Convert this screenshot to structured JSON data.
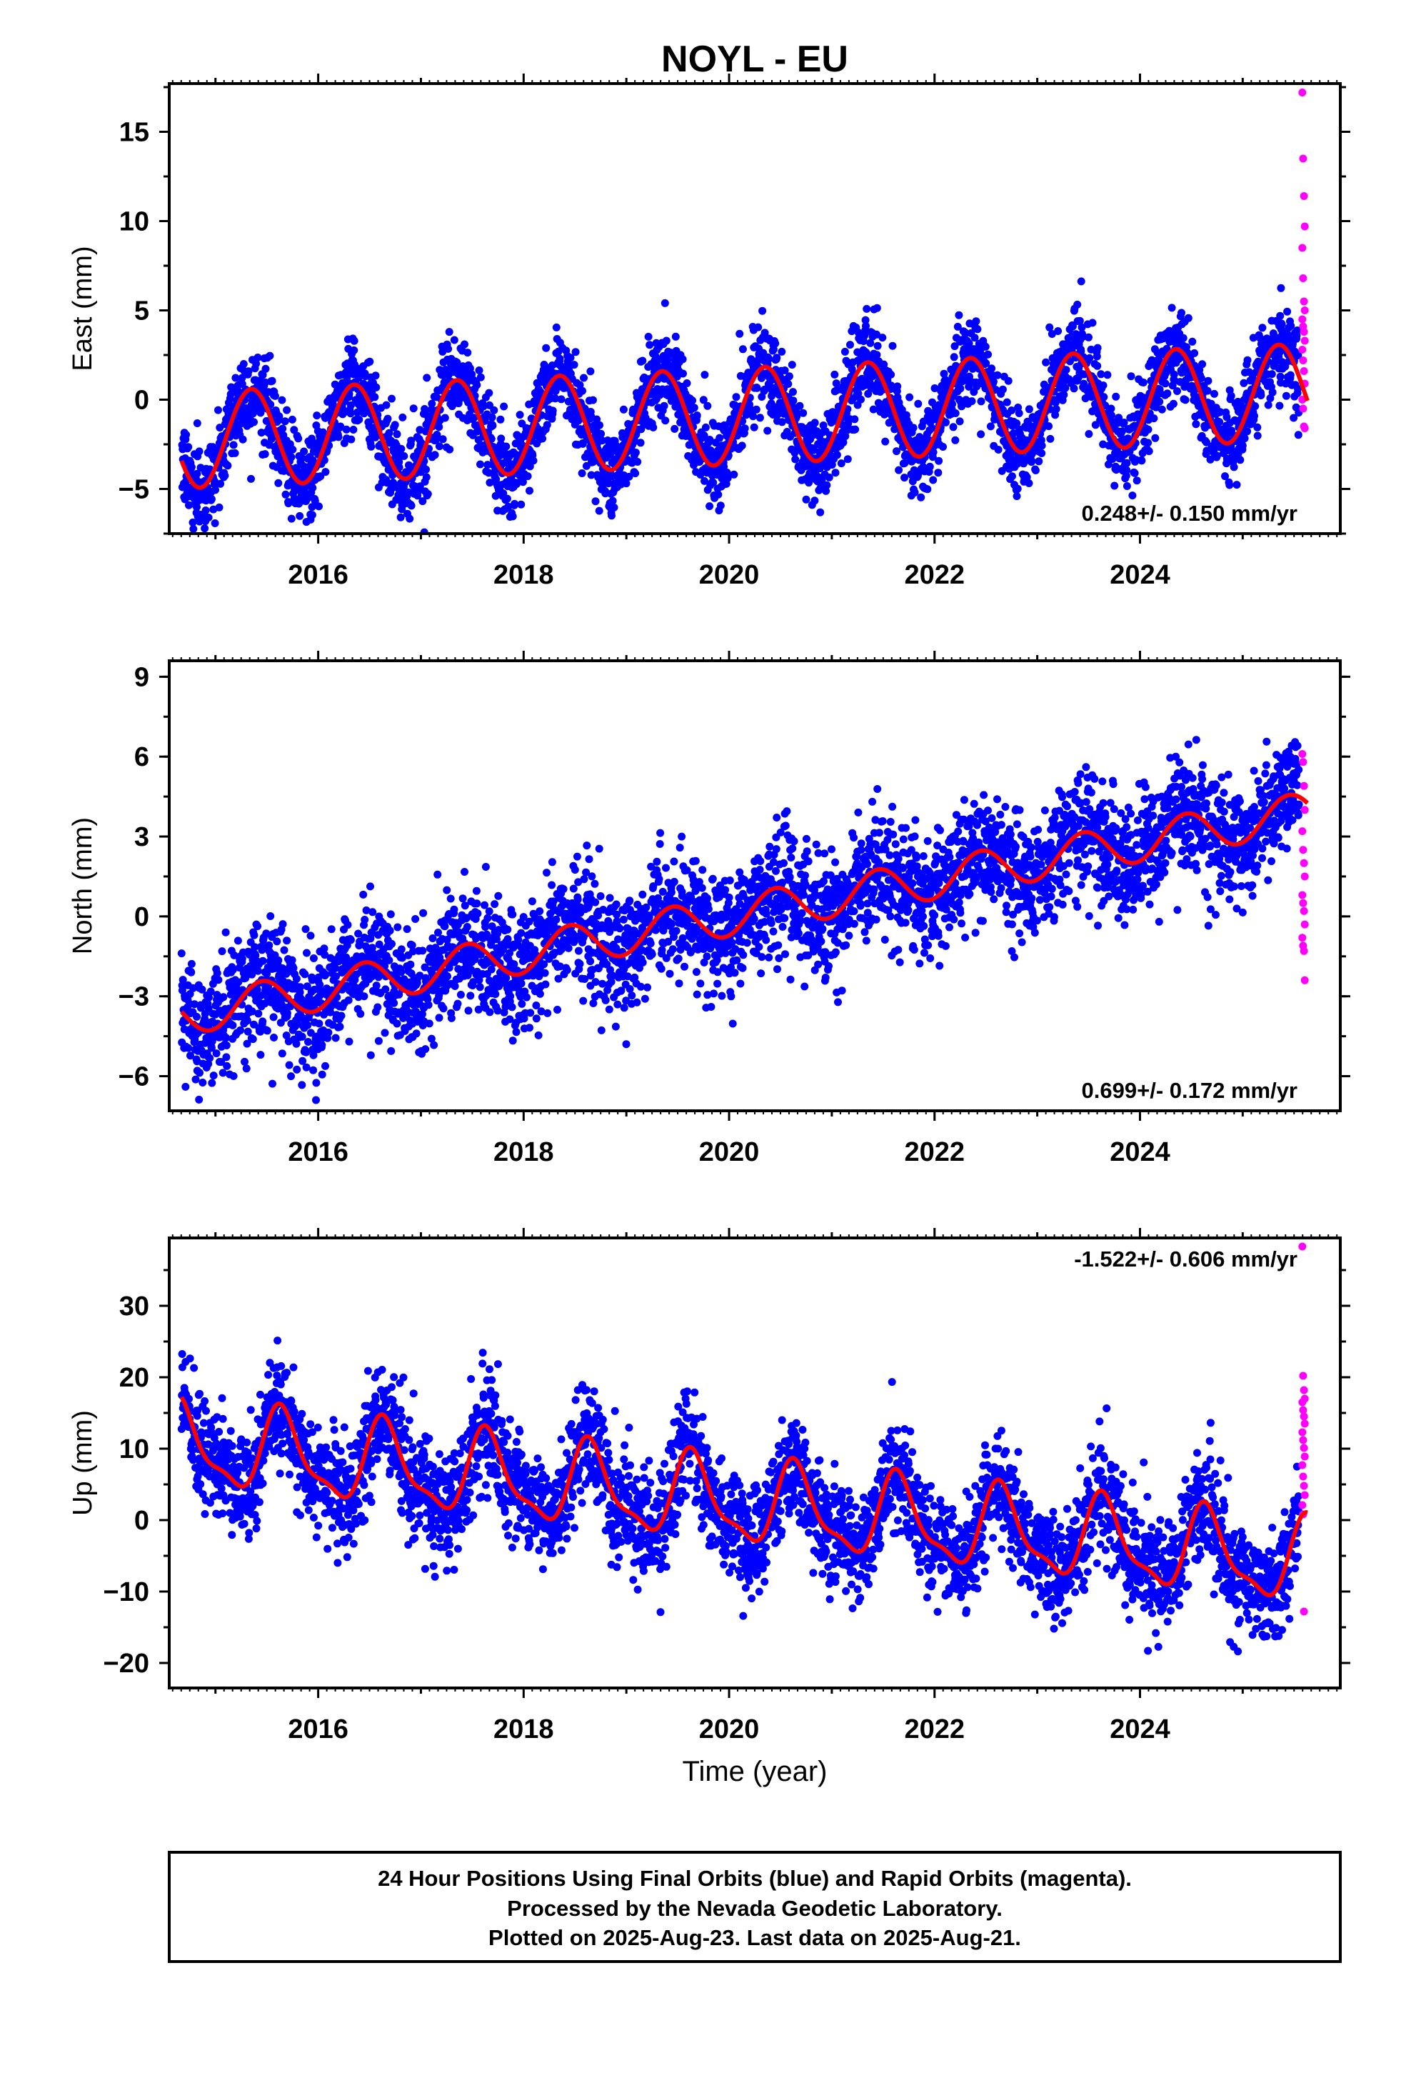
{
  "title": "NOYL - EU",
  "chart_data": [
    {
      "type": "scatter",
      "name": "east",
      "ylabel": "East (mm)",
      "ylim": [
        -7.5,
        17.7
      ],
      "xlim": [
        2014.55,
        2025.95
      ],
      "yticks": [
        -5,
        0,
        5,
        10,
        15
      ],
      "xticks": [
        2016,
        2018,
        2020,
        2022,
        2024
      ],
      "rate_label": "0.248+/- 0.150 mm/yr",
      "rate_position": "bottom-right",
      "model": {
        "offset": -0.9,
        "slope": 0.248,
        "t0": 2020.2,
        "annual_amplitude": 2.7,
        "annual_peak": 2020.35,
        "semiannual_amplitude": 0.0
      },
      "scatter_sigma": 1.2,
      "rapid_points": [
        17.2,
        13.5,
        11.4,
        9.7,
        8.5,
        6.8,
        5.5,
        5.0,
        4.5,
        4.1,
        3.8,
        3.3,
        2.8,
        2.2,
        1.6,
        0.9,
        0.0,
        -0.5,
        -1.5,
        -1.6
      ]
    },
    {
      "type": "scatter",
      "name": "north",
      "ylabel": "North (mm)",
      "ylim": [
        -7.3,
        9.6
      ],
      "xlim": [
        2014.55,
        2025.95
      ],
      "yticks": [
        -6,
        -3,
        0,
        3,
        6,
        9
      ],
      "xticks": [
        2016,
        2018,
        2020,
        2022,
        2024
      ],
      "rate_label": "0.699+/- 0.172 mm/yr",
      "rate_position": "bottom-right",
      "model": {
        "offset": 0.0,
        "slope": 0.699,
        "t0": 2020.0,
        "annual_amplitude": 0.75,
        "annual_peak": 2020.45,
        "semiannual_amplitude": 0.0
      },
      "scatter_sigma": 1.1,
      "rapid_points": [
        6.1,
        5.8,
        4.9,
        4.0,
        3.2,
        2.5,
        2.0,
        1.5,
        0.8,
        0.5,
        0.2,
        -0.3,
        -0.8,
        -1.1,
        -1.3,
        -2.4
      ]
    },
    {
      "type": "scatter",
      "name": "up",
      "ylabel": "Up (mm)",
      "xlabel": "Time (year)",
      "ylim": [
        -23.5,
        39.5
      ],
      "xlim": [
        2014.55,
        2025.95
      ],
      "yticks": [
        -20,
        -10,
        0,
        10,
        20,
        30
      ],
      "xticks": [
        2016,
        2018,
        2020,
        2022,
        2024
      ],
      "rate_label": "-1.522+/- 0.606 mm/yr",
      "rate_position": "top-right",
      "model": {
        "offset": 2.5,
        "slope": -1.522,
        "t0": 2020.0,
        "annual_amplitude": 5.5,
        "annual_peak": 2020.65,
        "semiannual_amplitude": 1.8,
        "semiannual_peak": 2020.6
      },
      "scatter_sigma": 3.8,
      "rapid_points": [
        38.3,
        20.2,
        18.2,
        17.0,
        16.5,
        15.4,
        14.5,
        13.5,
        12.3,
        11.2,
        10.1,
        8.9,
        7.7,
        6.1,
        4.8,
        3.5,
        2.1,
        0.8,
        -12.8
      ]
    }
  ],
  "time_range": {
    "start": 2014.67,
    "end_final": 2025.55,
    "end_rapid": 2025.63
  },
  "colors": {
    "final": "#0000ff",
    "rapid": "#ff00ff",
    "model": "#ff0000",
    "frame": "#000000"
  },
  "footer": {
    "line1": "24 Hour Positions Using Final Orbits (blue) and Rapid Orbits (magenta).",
    "line2": "Processed by the Nevada Geodetic Laboratory.",
    "line3": "Plotted on 2025-Aug-23. Last data on 2025-Aug-21."
  }
}
